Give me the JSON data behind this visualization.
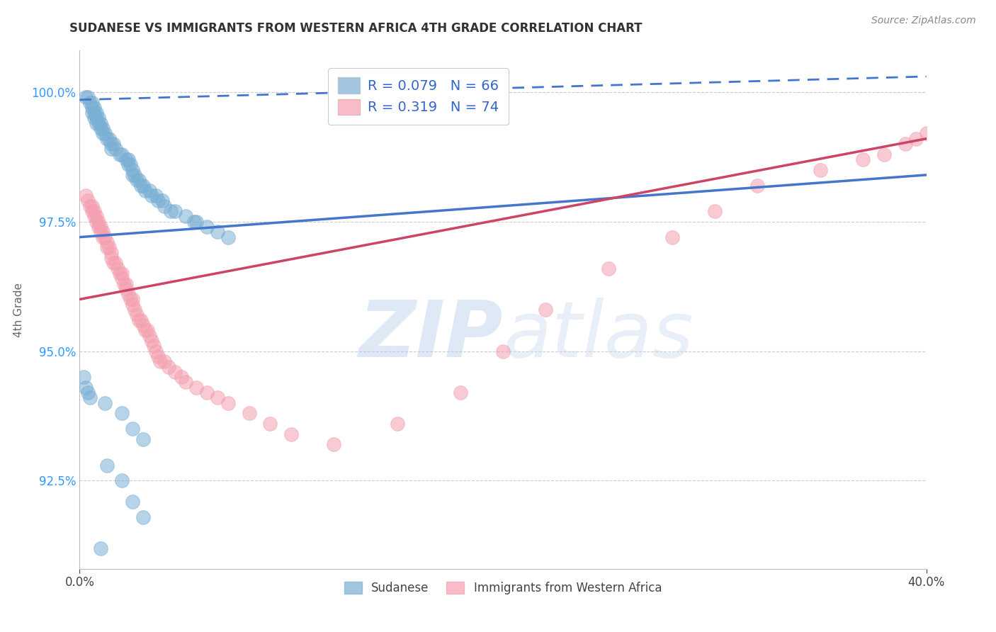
{
  "title": "SUDANESE VS IMMIGRANTS FROM WESTERN AFRICA 4TH GRADE CORRELATION CHART",
  "source": "Source: ZipAtlas.com",
  "ylabel": "4th Grade",
  "xlim": [
    0.0,
    0.4
  ],
  "ylim": [
    0.908,
    1.008
  ],
  "yticks": [
    0.925,
    0.95,
    0.975,
    1.0
  ],
  "yticklabels": [
    "92.5%",
    "95.0%",
    "97.5%",
    "100.0%"
  ],
  "blue_R": 0.079,
  "blue_N": 66,
  "pink_R": 0.319,
  "pink_N": 74,
  "blue_color": "#7BAFD4",
  "blue_edge": "#5588BB",
  "pink_color": "#F4A0B0",
  "pink_edge": "#D06080",
  "blue_line_color": "#4477CC",
  "pink_line_color": "#CC4466",
  "blue_label": "Sudanese",
  "pink_label": "Immigrants from Western Africa",
  "watermark_zip": "ZIP",
  "watermark_atlas": "atlas",
  "watermark_color": "#C8D8EE",
  "blue_trend": [
    0.0,
    0.4,
    0.972,
    0.984
  ],
  "pink_trend": [
    0.0,
    0.4,
    0.96,
    0.991
  ],
  "blue_dash": [
    0.0,
    0.4,
    0.9985,
    1.003
  ],
  "blue_pts_x": [
    0.003,
    0.004,
    0.005,
    0.006,
    0.006,
    0.006,
    0.007,
    0.007,
    0.007,
    0.008,
    0.008,
    0.008,
    0.009,
    0.009,
    0.01,
    0.01,
    0.011,
    0.011,
    0.012,
    0.013,
    0.014,
    0.015,
    0.015,
    0.016,
    0.017,
    0.019,
    0.02,
    0.022,
    0.023,
    0.023,
    0.024,
    0.025,
    0.025,
    0.026,
    0.027,
    0.028,
    0.029,
    0.03,
    0.031,
    0.033,
    0.034,
    0.036,
    0.037,
    0.039,
    0.04,
    0.043,
    0.045,
    0.05,
    0.054,
    0.055,
    0.06,
    0.065,
    0.07,
    0.002,
    0.003,
    0.004,
    0.005,
    0.012,
    0.02,
    0.025,
    0.03,
    0.013,
    0.02,
    0.025,
    0.03,
    0.01
  ],
  "blue_pts_y": [
    0.999,
    0.999,
    0.998,
    0.998,
    0.997,
    0.996,
    0.997,
    0.996,
    0.995,
    0.996,
    0.995,
    0.994,
    0.995,
    0.994,
    0.994,
    0.993,
    0.993,
    0.992,
    0.992,
    0.991,
    0.991,
    0.99,
    0.989,
    0.99,
    0.989,
    0.988,
    0.988,
    0.987,
    0.987,
    0.986,
    0.986,
    0.985,
    0.984,
    0.984,
    0.983,
    0.983,
    0.982,
    0.982,
    0.981,
    0.981,
    0.98,
    0.98,
    0.979,
    0.979,
    0.978,
    0.977,
    0.977,
    0.976,
    0.975,
    0.975,
    0.974,
    0.973,
    0.972,
    0.945,
    0.943,
    0.942,
    0.941,
    0.94,
    0.938,
    0.935,
    0.933,
    0.928,
    0.925,
    0.921,
    0.918,
    0.912
  ],
  "pink_pts_x": [
    0.003,
    0.004,
    0.005,
    0.006,
    0.006,
    0.007,
    0.007,
    0.008,
    0.008,
    0.009,
    0.009,
    0.01,
    0.01,
    0.011,
    0.011,
    0.012,
    0.013,
    0.013,
    0.014,
    0.015,
    0.015,
    0.016,
    0.017,
    0.018,
    0.019,
    0.02,
    0.02,
    0.021,
    0.022,
    0.022,
    0.023,
    0.024,
    0.025,
    0.025,
    0.026,
    0.027,
    0.028,
    0.029,
    0.03,
    0.031,
    0.032,
    0.033,
    0.034,
    0.035,
    0.036,
    0.037,
    0.038,
    0.04,
    0.042,
    0.045,
    0.048,
    0.05,
    0.055,
    0.06,
    0.065,
    0.07,
    0.08,
    0.09,
    0.1,
    0.12,
    0.15,
    0.18,
    0.2,
    0.22,
    0.25,
    0.28,
    0.3,
    0.32,
    0.35,
    0.37,
    0.38,
    0.39,
    0.395,
    0.4
  ],
  "pink_pts_y": [
    0.98,
    0.979,
    0.978,
    0.978,
    0.977,
    0.977,
    0.976,
    0.976,
    0.975,
    0.975,
    0.974,
    0.974,
    0.973,
    0.973,
    0.972,
    0.972,
    0.971,
    0.97,
    0.97,
    0.969,
    0.968,
    0.967,
    0.967,
    0.966,
    0.965,
    0.965,
    0.964,
    0.963,
    0.963,
    0.962,
    0.961,
    0.96,
    0.96,
    0.959,
    0.958,
    0.957,
    0.956,
    0.956,
    0.955,
    0.954,
    0.954,
    0.953,
    0.952,
    0.951,
    0.95,
    0.949,
    0.948,
    0.948,
    0.947,
    0.946,
    0.945,
    0.944,
    0.943,
    0.942,
    0.941,
    0.94,
    0.938,
    0.936,
    0.934,
    0.932,
    0.936,
    0.942,
    0.95,
    0.958,
    0.966,
    0.972,
    0.977,
    0.982,
    0.985,
    0.987,
    0.988,
    0.99,
    0.991,
    0.992
  ]
}
